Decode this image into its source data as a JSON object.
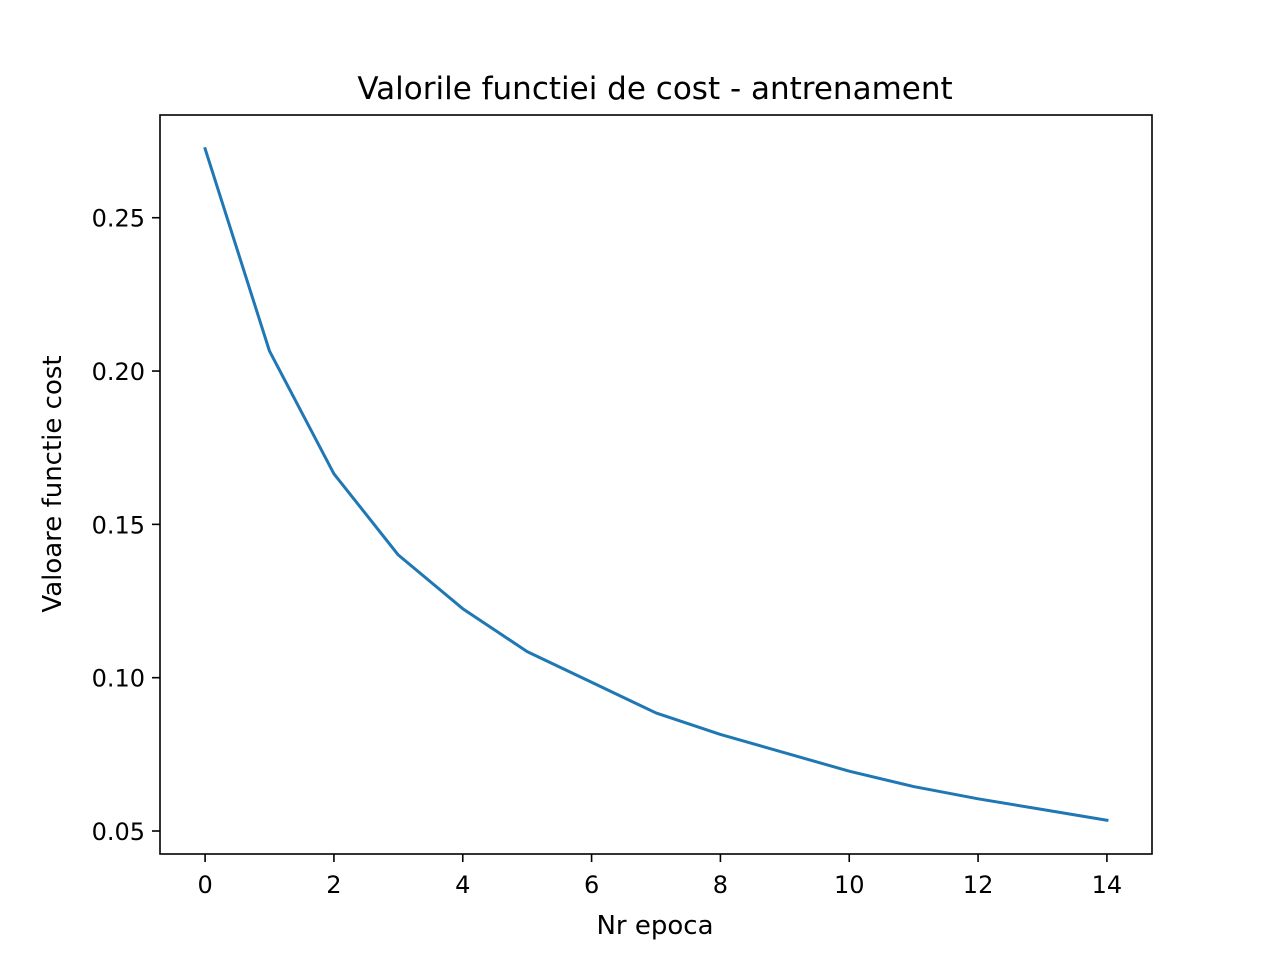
{
  "chart_data": {
    "type": "line",
    "title": "Valorile functiei de cost - antrenament",
    "xlabel": "Nr epoca",
    "ylabel": "Valoare functie cost",
    "x": [
      0,
      1,
      2,
      3,
      4,
      5,
      6,
      7,
      8,
      9,
      10,
      11,
      12,
      13,
      14
    ],
    "series": [
      {
        "values": [
          0.2725,
          0.2065,
          0.1665,
          0.14,
          0.1225,
          0.1085,
          0.0985,
          0.0885,
          0.0815,
          0.0755,
          0.0695,
          0.0645,
          0.0605,
          0.057,
          0.0535
        ],
        "color": "#1f77b4"
      }
    ],
    "xlim": [
      -0.7,
      14.7
    ],
    "ylim": [
      0.0425,
      0.2835
    ],
    "xticks": [
      0,
      2,
      4,
      6,
      8,
      10,
      12,
      14
    ],
    "xtick_labels": [
      "0",
      "2",
      "4",
      "6",
      "8",
      "10",
      "12",
      "14"
    ],
    "yticks": [
      0.05,
      0.1,
      0.15,
      0.2,
      0.25
    ],
    "ytick_labels": [
      "0.05",
      "0.10",
      "0.15",
      "0.20",
      "0.25"
    ],
    "grid": false,
    "legend": "none"
  }
}
